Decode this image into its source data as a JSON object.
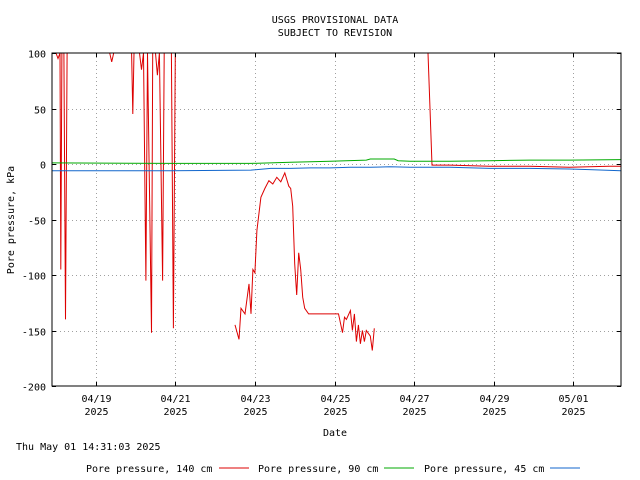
{
  "window": {
    "timestamp": "Thu May 01 14:31:03 2025"
  },
  "chart_data": {
    "type": "line",
    "title": "USGS PROVISIONAL DATA",
    "subtitle": "SUBJECT TO REVISION",
    "xlabel": "Date",
    "ylabel": "Pore pressure, kPa",
    "ylim": [
      -200,
      100
    ],
    "yticks": [
      100,
      50,
      0,
      -50,
      -100,
      -150,
      -200
    ],
    "xlim": [
      0,
      14.3
    ],
    "xticks": [
      {
        "day": 1.1,
        "line1": "04/19",
        "line2": "2025"
      },
      {
        "day": 3.1,
        "line1": "04/21",
        "line2": "2025"
      },
      {
        "day": 5.1,
        "line1": "04/23",
        "line2": "2025"
      },
      {
        "day": 7.1,
        "line1": "04/25",
        "line2": "2025"
      },
      {
        "day": 9.1,
        "line1": "04/27",
        "line2": "2025"
      },
      {
        "day": 11.1,
        "line1": "04/29",
        "line2": "2025"
      },
      {
        "day": 13.1,
        "line1": "05/01",
        "line2": "2025"
      }
    ],
    "grid": true,
    "legend_position": "bottom",
    "series": [
      {
        "name": "Pore pressure, 140 cm",
        "color": "#dd0000",
        "segments": [
          [
            [
              0.05,
              100
            ],
            [
              0.1,
              100
            ],
            [
              0.15,
              95
            ],
            [
              0.2,
              100
            ],
            [
              0.22,
              -95
            ],
            [
              0.25,
              100
            ],
            [
              0.3,
              100
            ],
            [
              0.34,
              -140
            ],
            [
              0.38,
              100
            ],
            [
              0.5,
              100
            ],
            [
              1.0,
              100
            ],
            [
              1.45,
              100
            ],
            [
              1.5,
              92
            ],
            [
              1.55,
              100
            ],
            [
              2.0,
              100
            ],
            [
              2.03,
              45
            ],
            [
              2.06,
              100
            ],
            [
              2.2,
              100
            ],
            [
              2.25,
              85
            ],
            [
              2.3,
              100
            ],
            [
              2.36,
              -105
            ],
            [
              2.4,
              100
            ],
            [
              2.45,
              -25
            ],
            [
              2.5,
              -152
            ],
            [
              2.53,
              100
            ],
            [
              2.6,
              100
            ],
            [
              2.65,
              80
            ],
            [
              2.7,
              100
            ],
            [
              2.78,
              -105
            ],
            [
              2.82,
              100
            ],
            [
              3.0,
              100
            ],
            [
              3.05,
              -148
            ],
            [
              3.1,
              100
            ]
          ],
          [
            [
              4.6,
              -145
            ],
            [
              4.7,
              -158
            ],
            [
              4.75,
              -130
            ],
            [
              4.85,
              -135
            ],
            [
              4.95,
              -108
            ],
            [
              5.0,
              -135
            ],
            [
              5.05,
              -95
            ],
            [
              5.1,
              -98
            ],
            [
              5.15,
              -60
            ],
            [
              5.2,
              -45
            ],
            [
              5.25,
              -30
            ],
            [
              5.35,
              -22
            ],
            [
              5.45,
              -15
            ],
            [
              5.55,
              -18
            ],
            [
              5.65,
              -12
            ],
            [
              5.75,
              -16
            ],
            [
              5.85,
              -8
            ],
            [
              5.9,
              -14
            ],
            [
              5.95,
              -20
            ],
            [
              6.0,
              -22
            ],
            [
              6.05,
              -38
            ],
            [
              6.1,
              -90
            ],
            [
              6.15,
              -118
            ],
            [
              6.2,
              -80
            ],
            [
              6.25,
              -95
            ],
            [
              6.3,
              -120
            ],
            [
              6.35,
              -130
            ],
            [
              6.45,
              -135
            ],
            [
              6.8,
              -135
            ],
            [
              7.2,
              -135
            ],
            [
              7.3,
              -152
            ],
            [
              7.35,
              -138
            ],
            [
              7.4,
              -140
            ],
            [
              7.5,
              -132
            ],
            [
              7.55,
              -150
            ],
            [
              7.6,
              -135
            ],
            [
              7.65,
              -160
            ],
            [
              7.7,
              -145
            ],
            [
              7.75,
              -162
            ],
            [
              7.8,
              -150
            ],
            [
              7.85,
              -160
            ],
            [
              7.9,
              -150
            ],
            [
              8.0,
              -155
            ],
            [
              8.05,
              -168
            ],
            [
              8.1,
              -148
            ]
          ],
          [
            [
              9.35,
              100
            ],
            [
              9.45,
              100
            ],
            [
              9.5,
              50
            ],
            [
              9.55,
              -1
            ],
            [
              10.0,
              -1
            ],
            [
              11.0,
              -2
            ],
            [
              12.0,
              -2
            ],
            [
              13.0,
              -3
            ],
            [
              14.0,
              -2
            ],
            [
              14.3,
              -2
            ]
          ]
        ]
      },
      {
        "name": "Pore pressure, 90 cm",
        "color": "#00aa00",
        "segments": [
          [
            [
              0,
              1
            ],
            [
              3.0,
              0.5
            ],
            [
              5.0,
              0.5
            ],
            [
              6.0,
              1.5
            ],
            [
              7.0,
              2.5
            ],
            [
              7.9,
              3.5
            ],
            [
              8.0,
              4.5
            ],
            [
              8.6,
              4.5
            ],
            [
              8.7,
              3
            ],
            [
              9.0,
              2.5
            ],
            [
              10.0,
              2.5
            ],
            [
              11.0,
              3
            ],
            [
              12.0,
              3.5
            ],
            [
              13.0,
              3.5
            ],
            [
              14.3,
              4
            ]
          ]
        ]
      },
      {
        "name": "Pore pressure, 45 cm",
        "color": "#1166cc",
        "segments": [
          [
            [
              0,
              -6
            ],
            [
              2.0,
              -6
            ],
            [
              3.0,
              -6
            ],
            [
              5.0,
              -5.5
            ],
            [
              5.5,
              -4
            ],
            [
              6.0,
              -4
            ],
            [
              6.5,
              -3.5
            ],
            [
              7.0,
              -3.5
            ],
            [
              7.5,
              -3
            ],
            [
              8.0,
              -3
            ],
            [
              8.5,
              -2.5
            ],
            [
              9.0,
              -3
            ],
            [
              10.0,
              -3
            ],
            [
              11.0,
              -4
            ],
            [
              12.0,
              -4
            ],
            [
              13.0,
              -4.5
            ],
            [
              13.5,
              -5
            ],
            [
              14.3,
              -6
            ]
          ]
        ]
      }
    ]
  }
}
